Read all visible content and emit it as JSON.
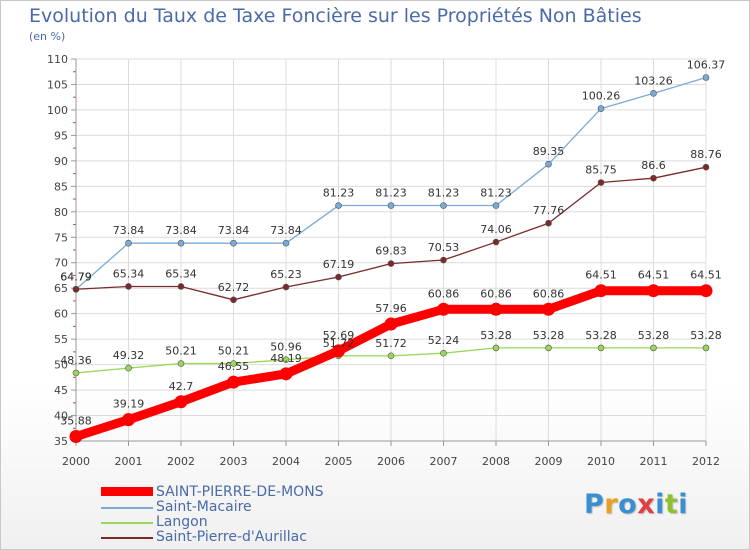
{
  "title": "Evolution du Taux de Taxe Foncière sur les Propriétés Non Bâties",
  "unit_label": "(en %)",
  "logo": {
    "text": "Proxiti",
    "letter_colors": [
      "#3a8fd0",
      "#e8a020",
      "#3a8fd0",
      "#e04040",
      "#3a8fd0",
      "#90c030",
      "#3a8fd0"
    ]
  },
  "chart_data": {
    "type": "line",
    "title": "Evolution du Taux de Taxe Foncière sur les Propriétés Non Bâties",
    "ylabel": "(en %)",
    "xlabel": "",
    "x": [
      "2000",
      "2001",
      "2002",
      "2003",
      "2004",
      "2005",
      "2006",
      "2007",
      "2008",
      "2009",
      "2010",
      "2011",
      "2012"
    ],
    "ylim": [
      35,
      110
    ],
    "yticks": [
      35,
      40,
      45,
      50,
      55,
      60,
      65,
      70,
      75,
      80,
      85,
      90,
      95,
      100,
      105,
      110
    ],
    "grid": true,
    "legend_position": "bottom-left",
    "series": [
      {
        "name": "Saint-Macaire",
        "color": "#7aaad8",
        "values": [
          64.79,
          73.84,
          73.84,
          73.84,
          73.84,
          81.23,
          81.23,
          81.23,
          81.23,
          89.35,
          100.26,
          103.26,
          106.37
        ],
        "labels": [
          "64.79",
          "73.84",
          "73.84",
          "73.84",
          "73.84",
          "81.23",
          "81.23",
          "81.23",
          "81.23",
          "89.35",
          "100.26",
          "103.26",
          "106.37"
        ]
      },
      {
        "name": "Saint-Pierre-d'Aurillac",
        "color": "#7a2a2a",
        "values": [
          64.79,
          65.34,
          65.34,
          62.72,
          65.23,
          67.19,
          69.83,
          70.53,
          74.06,
          77.76,
          85.75,
          86.6,
          88.76
        ],
        "labels": [
          "64.79",
          "65.34",
          "65.34",
          "62.72",
          "65.23",
          "67.19",
          "69.83",
          "70.53",
          "74.06",
          "77.76",
          "85.75",
          "86.6",
          "88.76"
        ]
      },
      {
        "name": "Langon",
        "color": "#9ad65a",
        "values": [
          48.36,
          49.32,
          50.21,
          50.21,
          50.96,
          51.72,
          51.72,
          52.24,
          53.28,
          53.28,
          53.28,
          53.28,
          53.28
        ],
        "labels": [
          "48.36",
          "49.32",
          "50.21",
          "50.21",
          "50.96",
          "51.72",
          "51.72",
          "52.24",
          "53.28",
          "53.28",
          "53.28",
          "53.28",
          "53.28"
        ]
      },
      {
        "name": "SAINT-PIERRE-DE-MONS",
        "color": "#ff0000",
        "values": [
          35.88,
          39.19,
          42.7,
          46.55,
          48.19,
          52.69,
          57.96,
          60.86,
          60.86,
          60.86,
          64.51,
          64.51,
          64.51
        ],
        "labels": [
          "35.88",
          "39.19",
          "42.7",
          "46.55",
          "48.19",
          "52.69",
          "57.96",
          "60.86",
          "60.86",
          "60.86",
          "64.51",
          "64.51",
          "64.51"
        ]
      }
    ]
  },
  "legend": [
    {
      "name": "SAINT-PIERRE-DE-MONS",
      "color": "#ff0000",
      "style": "thick"
    },
    {
      "name": "Saint-Macaire",
      "color": "#7aaad8",
      "style": "thin"
    },
    {
      "name": "Langon",
      "color": "#9ad65a",
      "style": "thin"
    },
    {
      "name": "Saint-Pierre-d'Aurillac",
      "color": "#7a2a2a",
      "style": "thin"
    }
  ]
}
